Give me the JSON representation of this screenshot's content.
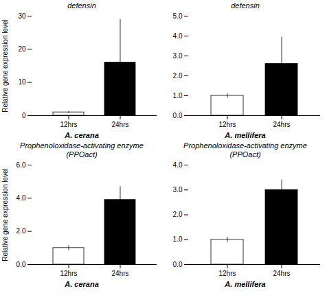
{
  "chart_data": [
    {
      "type": "bar",
      "title": "defensin",
      "xlabel": "A. cerana",
      "ylabel": "Relative gene expression level",
      "categories": [
        "12hrs",
        "24hrs"
      ],
      "values": [
        1.0,
        16.0
      ],
      "errors": [
        0.3,
        13.0
      ],
      "colors": [
        "white",
        "black"
      ],
      "ylim": [
        0,
        30
      ],
      "yticks": [
        0,
        10,
        20,
        30
      ]
    },
    {
      "type": "bar",
      "title": "defensin",
      "xlabel": "A. mellifera",
      "categories": [
        "12hrs",
        "24hrs"
      ],
      "values": [
        1.0,
        2.6
      ],
      "errors": [
        0.1,
        1.35
      ],
      "colors": [
        "white",
        "black"
      ],
      "ylim": [
        0,
        5
      ],
      "yticks": [
        0,
        1,
        2,
        3,
        4,
        5
      ]
    },
    {
      "type": "bar",
      "title": "Prophenoloxidase-activating enzyme\n(PPOact)",
      "xlabel": "A. cerana",
      "ylabel": "Relative gene expression level",
      "categories": [
        "12hrs",
        "24hrs"
      ],
      "values": [
        1.0,
        3.9
      ],
      "errors": [
        0.15,
        0.8
      ],
      "colors": [
        "white",
        "black"
      ],
      "ylim": [
        0,
        6
      ],
      "yticks": [
        0,
        2,
        4,
        6
      ]
    },
    {
      "type": "bar",
      "title": "Prophenoloxidase-activating enzyme\n(PPOact)",
      "xlabel": "A. mellifera",
      "categories": [
        "12hrs",
        "24hrs"
      ],
      "values": [
        1.0,
        3.0
      ],
      "errors": [
        0.1,
        0.4
      ],
      "colors": [
        "white",
        "black"
      ],
      "ylim": [
        0,
        4
      ],
      "yticks": [
        0,
        1,
        2,
        3,
        4
      ]
    }
  ]
}
